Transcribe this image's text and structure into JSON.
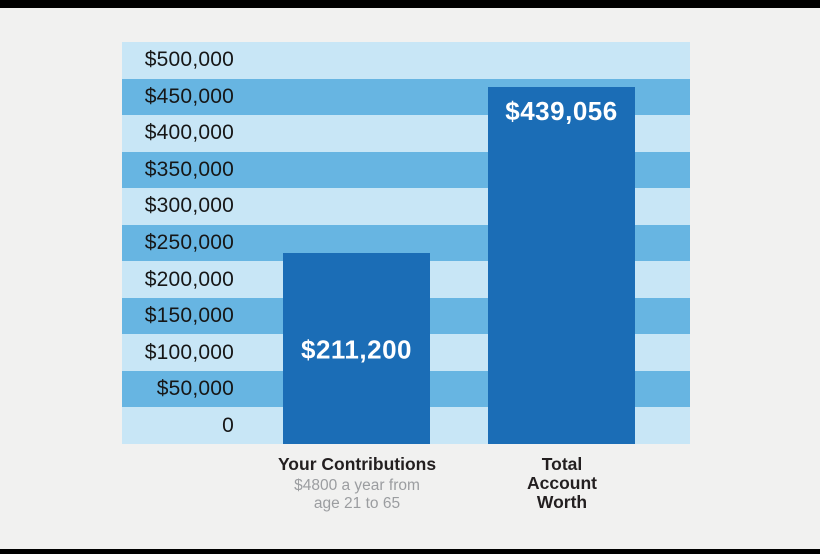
{
  "chart_data": {
    "type": "bar",
    "title": "",
    "categories": [
      "Your Contributions",
      "Total Account Worth"
    ],
    "values": [
      211200,
      439056
    ],
    "ylim": [
      0,
      500000
    ],
    "ytick_step": 50000,
    "ytick_labels": [
      "$500,000",
      "$450,000",
      "$400,000",
      "$350,000",
      "$300,000",
      "$250,000",
      "$200,000",
      "$150,000",
      "$100,000",
      "$50,000",
      "0"
    ],
    "grid": "horizontal-striped-bands",
    "legend": "none",
    "bars": [
      {
        "category": "Your Contributions",
        "value": 211200,
        "value_label": "$211,200",
        "axis_title": "Your Contributions",
        "axis_subtitle": "$4800 a year from\nage 21 to 65",
        "value_label_position": "middle"
      },
      {
        "category": "Total Account Worth",
        "value": 439056,
        "value_label": "$439,056",
        "axis_title": "Total\nAccount\nWorth",
        "axis_subtitle": "",
        "value_label_position": "top"
      }
    ],
    "colors": {
      "bar": "#1b6db6",
      "band_light": "#c8e6f6",
      "band_dark": "#67b5e2",
      "value_label": "#ffffff",
      "tick_label": "#161616",
      "axis_title": "#231f20",
      "axis_subtitle": "#9b9da0",
      "background": "#f1f1f0",
      "border": "#000000"
    }
  }
}
